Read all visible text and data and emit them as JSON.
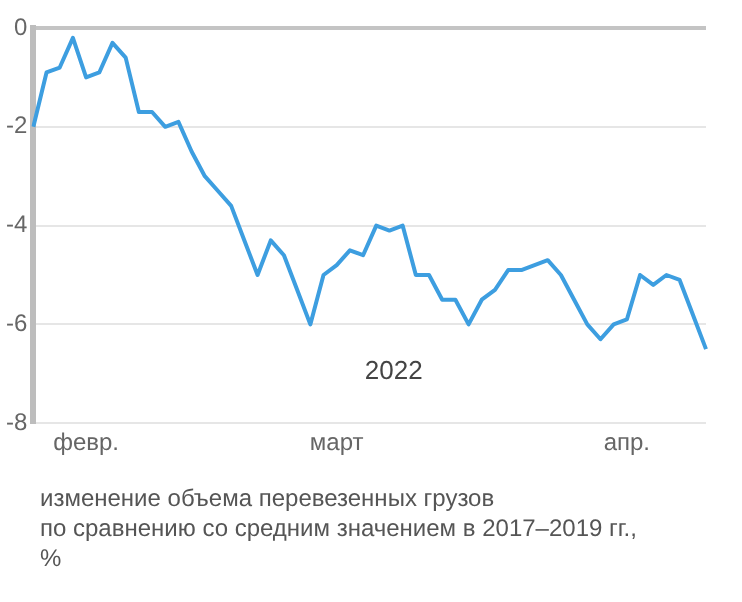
{
  "chart_data": {
    "type": "line",
    "categories": [
      null,
      null,
      null,
      null,
      "февр.",
      null,
      null,
      null,
      null,
      null,
      null,
      null,
      null,
      null,
      null,
      null,
      null,
      null,
      null,
      null,
      null,
      null,
      null,
      "март",
      null,
      null,
      null,
      null,
      null,
      null,
      null,
      null,
      null,
      null,
      null,
      null,
      null,
      null,
      null,
      null,
      null,
      null,
      null,
      null,
      null,
      "апр.",
      null,
      null,
      null,
      null,
      null,
      null
    ],
    "series": [
      {
        "color": "#3d9ee0",
        "values": [
          -2.0,
          -0.9,
          -0.8,
          -0.2,
          -1.0,
          -0.9,
          -0.3,
          -0.6,
          -1.7,
          -1.7,
          -2.0,
          -1.9,
          -2.5,
          -3.0,
          -3.3,
          -3.6,
          -4.3,
          -5.0,
          -4.3,
          -4.6,
          -5.3,
          -6.0,
          -5.0,
          -4.8,
          -4.5,
          -4.6,
          -4.0,
          -4.1,
          -4.0,
          -5.0,
          -5.0,
          -5.5,
          -5.5,
          -6.0,
          -5.5,
          -5.3,
          -4.9,
          -4.9,
          -4.8,
          -4.7,
          -5.0,
          -5.5,
          -6.0,
          -6.3,
          -6.0,
          -5.9,
          -5.0,
          -5.2,
          -5.0,
          -5.1,
          -5.8,
          -6.5
        ]
      }
    ],
    "ylim": [
      -8,
      0
    ],
    "yticks": [
      -8,
      -6,
      -4,
      -2,
      0
    ],
    "grid": "y",
    "marker": "none",
    "line_style": "solid",
    "annotations": [
      "2022",
      "изменение объема перевезенных грузов\nпо сравнению со средним значением в 2017–2019 гг.,\n%"
    ]
  }
}
